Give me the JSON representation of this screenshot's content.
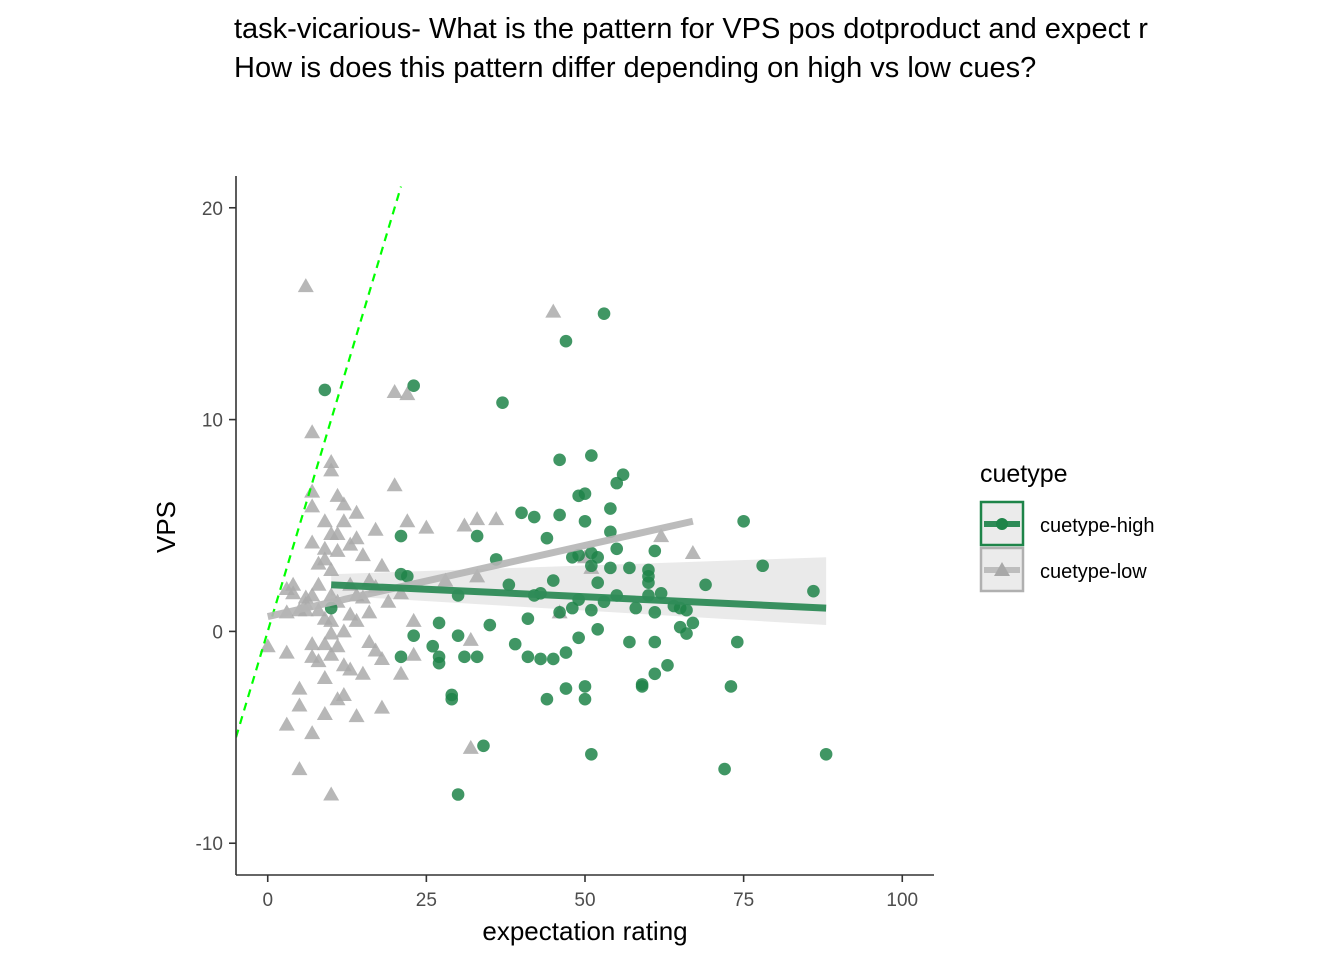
{
  "chart_data": {
    "type": "scatter",
    "title": "task-vicarious- What is the pattern for VPS pos dotproduct and expect r",
    "subtitle": "How is does this pattern differ depending on high vs low cues?",
    "xlabel": "expectation rating",
    "ylabel": "VPS",
    "xlim": [
      -5,
      105
    ],
    "ylim": [
      -11.5,
      21.5
    ],
    "x_ticks": [
      0,
      25,
      50,
      75,
      100
    ],
    "x_tick_labels": [
      "0",
      "25",
      "50",
      "75",
      "100"
    ],
    "y_ticks": [
      -10,
      0,
      10,
      20
    ],
    "y_tick_labels": [
      "-10",
      "0",
      "10",
      "20"
    ],
    "grid": false,
    "legend": {
      "title": "cuetype",
      "position": "right"
    },
    "reference_line": {
      "style": "dashed",
      "color": "#00ff00",
      "x": [
        -5,
        21
      ],
      "y": [
        -5,
        21
      ]
    },
    "series": [
      {
        "name": "cuetype-high",
        "marker": "circle",
        "color": "#1e8449",
        "fit": {
          "x": [
            10,
            88
          ],
          "y": [
            2.2,
            1.1
          ],
          "ci_lower": [
            1.7,
            0.3
          ],
          "ci_upper": [
            2.7,
            3.5
          ]
        },
        "points": [
          [
            9,
            11.4
          ],
          [
            23,
            11.6
          ],
          [
            21,
            4.5
          ],
          [
            21,
            2.7
          ],
          [
            22,
            2.6
          ],
          [
            10,
            1.1
          ],
          [
            21,
            -1.2
          ],
          [
            23,
            -0.2
          ],
          [
            26,
            -0.7
          ],
          [
            27,
            0.4
          ],
          [
            27,
            -1.2
          ],
          [
            27,
            -1.5
          ],
          [
            29,
            -3.0
          ],
          [
            29,
            -3.2
          ],
          [
            30,
            1.7
          ],
          [
            30,
            -0.2
          ],
          [
            31,
            -1.2
          ],
          [
            30,
            -7.7
          ],
          [
            33,
            4.5
          ],
          [
            33,
            -1.2
          ],
          [
            34,
            -5.4
          ],
          [
            35,
            0.3
          ],
          [
            36,
            3.4
          ],
          [
            37,
            10.8
          ],
          [
            38,
            2.2
          ],
          [
            39,
            -0.6
          ],
          [
            40,
            5.6
          ],
          [
            41,
            0.6
          ],
          [
            41,
            -1.2
          ],
          [
            42,
            5.4
          ],
          [
            42,
            1.7
          ],
          [
            43,
            1.8
          ],
          [
            43,
            -1.3
          ],
          [
            44,
            -3.2
          ],
          [
            44,
            4.4
          ],
          [
            45,
            2.4
          ],
          [
            45,
            -1.3
          ],
          [
            46,
            8.1
          ],
          [
            46,
            0.9
          ],
          [
            46,
            5.5
          ],
          [
            47,
            13.7
          ],
          [
            47,
            -2.7
          ],
          [
            47,
            -1.0
          ],
          [
            48,
            1.1
          ],
          [
            48,
            3.5
          ],
          [
            49,
            6.4
          ],
          [
            49,
            3.6
          ],
          [
            49,
            -0.3
          ],
          [
            49,
            1.5
          ],
          [
            50,
            6.5
          ],
          [
            50,
            5.2
          ],
          [
            50,
            -3.2
          ],
          [
            50,
            -2.6
          ],
          [
            51,
            8.3
          ],
          [
            51,
            3.1
          ],
          [
            51,
            3.7
          ],
          [
            51,
            -5.8
          ],
          [
            51,
            1.0
          ],
          [
            52,
            2.3
          ],
          [
            52,
            0.1
          ],
          [
            52,
            3.5
          ],
          [
            53,
            1.4
          ],
          [
            53,
            15.0
          ],
          [
            54,
            5.8
          ],
          [
            54,
            4.7
          ],
          [
            54,
            3.0
          ],
          [
            55,
            3.9
          ],
          [
            55,
            7.0
          ],
          [
            55,
            1.7
          ],
          [
            56,
            7.4
          ],
          [
            57,
            3.0
          ],
          [
            57,
            -0.5
          ],
          [
            58,
            1.1
          ],
          [
            59,
            -2.5
          ],
          [
            59,
            -2.6
          ],
          [
            60,
            2.3
          ],
          [
            60,
            2.9
          ],
          [
            60,
            2.6
          ],
          [
            60,
            1.7
          ],
          [
            61,
            3.8
          ],
          [
            61,
            0.9
          ],
          [
            61,
            -0.5
          ],
          [
            61,
            -2.0
          ],
          [
            62,
            1.8
          ],
          [
            63,
            -1.6
          ],
          [
            64,
            1.2
          ],
          [
            65,
            1.1
          ],
          [
            65,
            0.2
          ],
          [
            66,
            -0.1
          ],
          [
            66,
            1.0
          ],
          [
            67,
            0.4
          ],
          [
            69,
            2.2
          ],
          [
            72,
            -6.5
          ],
          [
            73,
            -2.6
          ],
          [
            74,
            -0.5
          ],
          [
            75,
            5.2
          ],
          [
            78,
            3.1
          ],
          [
            86,
            1.9
          ],
          [
            88,
            -5.8
          ]
        ]
      },
      {
        "name": "cuetype-low",
        "marker": "triangle",
        "color": "#aaaaaa",
        "fit": {
          "x": [
            0,
            67
          ],
          "y": [
            0.7,
            5.2
          ]
        },
        "points": [
          [
            0,
            -0.7
          ],
          [
            3,
            0.9
          ],
          [
            3,
            -1.0
          ],
          [
            3,
            -4.4
          ],
          [
            3,
            2.0
          ],
          [
            4,
            1.8
          ],
          [
            4,
            2.2
          ],
          [
            5,
            -2.7
          ],
          [
            5,
            -3.5
          ],
          [
            5,
            -6.5
          ],
          [
            5,
            1.0
          ],
          [
            6,
            16.3
          ],
          [
            6,
            1.3
          ],
          [
            6,
            1.6
          ],
          [
            6,
            1.0
          ],
          [
            7,
            9.4
          ],
          [
            7,
            5.9
          ],
          [
            7,
            4.2
          ],
          [
            7,
            6.6
          ],
          [
            7,
            1.7
          ],
          [
            7,
            -0.6
          ],
          [
            7,
            -1.2
          ],
          [
            7,
            -4.8
          ],
          [
            8,
            3.2
          ],
          [
            8,
            1.0
          ],
          [
            8,
            -1.4
          ],
          [
            8,
            2.2
          ],
          [
            9,
            0.6
          ],
          [
            9,
            3.4
          ],
          [
            9,
            5.2
          ],
          [
            9,
            -0.6
          ],
          [
            9,
            -2.2
          ],
          [
            9,
            -3.9
          ],
          [
            9,
            3.9
          ],
          [
            10,
            8.0
          ],
          [
            10,
            7.6
          ],
          [
            10,
            4.6
          ],
          [
            10,
            2.9
          ],
          [
            10,
            1.7
          ],
          [
            10,
            0.5
          ],
          [
            10,
            -0.1
          ],
          [
            10,
            -1.1
          ],
          [
            10,
            -7.7
          ],
          [
            11,
            6.4
          ],
          [
            11,
            4.6
          ],
          [
            11,
            3.8
          ],
          [
            11,
            1.4
          ],
          [
            11,
            -0.7
          ],
          [
            11,
            -3.2
          ],
          [
            12,
            6.0
          ],
          [
            12,
            5.2
          ],
          [
            12,
            -3.0
          ],
          [
            12,
            -1.6
          ],
          [
            12,
            0.0
          ],
          [
            13,
            4.1
          ],
          [
            13,
            2.2
          ],
          [
            13,
            0.8
          ],
          [
            13,
            -1.8
          ],
          [
            14,
            5.6
          ],
          [
            14,
            4.4
          ],
          [
            14,
            1.7
          ],
          [
            14,
            0.5
          ],
          [
            14,
            -4.0
          ],
          [
            15,
            3.6
          ],
          [
            15,
            1.6
          ],
          [
            15,
            -2.0
          ],
          [
            16,
            2.4
          ],
          [
            16,
            0.9
          ],
          [
            16,
            -0.5
          ],
          [
            17,
            4.8
          ],
          [
            17,
            2.1
          ],
          [
            17,
            -0.9
          ],
          [
            18,
            3.1
          ],
          [
            18,
            -1.3
          ],
          [
            18,
            -3.6
          ],
          [
            19,
            1.4
          ],
          [
            20,
            6.9
          ],
          [
            20,
            11.3
          ],
          [
            21,
            1.8
          ],
          [
            21,
            -2.0
          ],
          [
            22,
            11.2
          ],
          [
            22,
            5.2
          ],
          [
            23,
            0.5
          ],
          [
            23,
            -1.1
          ],
          [
            25,
            4.9
          ],
          [
            28,
            2.4
          ],
          [
            31,
            5.0
          ],
          [
            32,
            -5.5
          ],
          [
            32,
            -0.4
          ],
          [
            33,
            2.6
          ],
          [
            33,
            5.3
          ],
          [
            36,
            5.3
          ],
          [
            45,
            15.1
          ],
          [
            46,
            0.9
          ],
          [
            50,
            3.5
          ],
          [
            51,
            3.0
          ],
          [
            62,
            4.5
          ],
          [
            67,
            3.7
          ]
        ]
      }
    ]
  }
}
